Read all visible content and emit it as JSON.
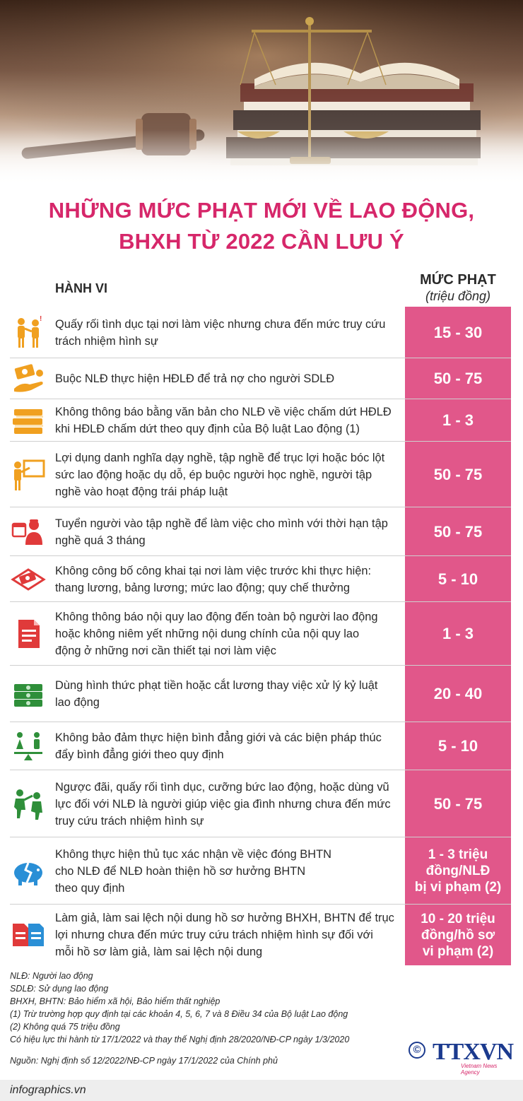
{
  "title": {
    "line1": "NHỮNG MỨC PHẠT MỚI VỀ LAO ĐỘNG,",
    "line2": "BHXH TỪ 2022 CẦN LƯU Ý"
  },
  "columns": {
    "behavior": "HÀNH VI",
    "penalty": "MỨC PHẠT",
    "penalty_unit": "(triệu đồng)"
  },
  "rows": [
    {
      "icon": "harassment-icon",
      "lines": [
        "Quấy rối tình dục tại nơi làm việc nhưng chưa đến mức truy cứu",
        "trách nhiệm hình sự"
      ],
      "value": [
        "15 - 30"
      ]
    },
    {
      "icon": "money-hand-icon",
      "lines": [
        "Buộc NLĐ thực hiện HĐLĐ để trả nợ cho người SDLĐ"
      ],
      "value": [
        "50 - 75"
      ]
    },
    {
      "icon": "books-icon",
      "lines": [
        "Không thông báo bằng văn bản cho NLĐ về việc chấm dứt HĐLĐ",
        "khi HĐLĐ chấm dứt theo quy định của Bộ luật Lao động (1)"
      ],
      "value": [
        "1 - 3"
      ]
    },
    {
      "icon": "teacher-board-icon",
      "lines": [
        "Lợi dụng danh nghĩa dạy nghề, tập nghề để trục lợi hoặc bóc lột",
        "sức lao động hoặc dụ dỗ, ép buộc người học nghề, người tập",
        "nghề vào hoạt động trái pháp luật"
      ],
      "value": [
        "50 - 75"
      ]
    },
    {
      "icon": "calendar-worker-icon",
      "lines": [
        "Tuyển người vào tập nghề để làm việc cho mình với thời hạn tập",
        "nghề quá 3 tháng"
      ],
      "value": [
        "50 - 75"
      ]
    },
    {
      "icon": "money-envelope-icon",
      "lines": [
        "Không công bố công khai tại nơi làm việc trước khi thực hiện:",
        "thang lương, bảng lương; mức lao động; quy chế thưởng"
      ],
      "value": [
        "5 - 10"
      ]
    },
    {
      "icon": "document-icon",
      "lines": [
        "Không thông báo nội quy lao động đến toàn bộ người lao động",
        "hoặc không niêm yết những nội dung chính của nội quy lao",
        "động ở những nơi cần thiết tại nơi làm việc"
      ],
      "value": [
        "1 - 3"
      ]
    },
    {
      "icon": "cash-stack-icon",
      "lines": [
        "Dùng hình thức phạt tiền hoặc cắt lương thay việc xử lý kỷ luật",
        "lao động"
      ],
      "value": [
        "20 - 40"
      ]
    },
    {
      "icon": "gender-balance-icon",
      "lines": [
        "Không bảo đảm thực hiện bình đẳng giới và các biện pháp thúc",
        "đẩy bình đẳng giới theo quy định"
      ],
      "value": [
        "5 - 10"
      ]
    },
    {
      "icon": "abuse-icon",
      "lines": [
        "Ngược đãi, quấy rối tình dục, cưỡng bức lao động, hoặc dùng vũ",
        "lực đối với NLĐ là người giúp việc gia đình nhưng chưa đến mức",
        "truy cứu trách nhiệm hình sự"
      ],
      "value": [
        "50 - 75"
      ]
    },
    {
      "icon": "broken-piggy-bank-icon",
      "lines": [
        "Không thực hiện thủ tục xác nhận về việc đóng BHTN",
        "cho NLĐ để NLĐ hoàn thiện hồ sơ hưởng BHTN",
        "theo quy định"
      ],
      "value": [
        "1 - 3 triệu",
        "đồng/NLĐ",
        "bị vi phạm (2)"
      ]
    },
    {
      "icon": "documents-icon",
      "lines": [
        "Làm giả, làm sai lệch nội dung hồ sơ hưởng BHXH, BHTN để trục",
        "lợi nhưng chưa đến mức truy cứu trách nhiệm hình sự đối với",
        "mỗi hồ sơ làm giả, làm sai lệch nội dung"
      ],
      "value": [
        "10 - 20 triệu",
        "đồng/hồ sơ",
        "vi phạm (2)"
      ]
    }
  ],
  "notes": [
    "NLĐ: Người lao động",
    "SDLĐ: Sử dụng lao động",
    "BHXH, BHTN: Bảo hiểm xã hội, Bảo hiểm thất nghiệp",
    "(1) Trừ trường hợp quy định tại các khoản 4, 5, 6, 7 và 8 Điều 34 của Bộ luật Lao động",
    "(2) Không quá 75 triệu đồng",
    "Có hiệu lực thi hành từ 17/1/2022 và thay thế Nghị định 28/2020/NĐ-CP ngày 1/3/2020"
  ],
  "source": "Nguồn: Nghị định số 12/2022/NĐ-CP ngày 17/1/2022 của Chính phủ",
  "logo": {
    "copyright": "©",
    "brand": "TTXVN",
    "subtitle": "Vietnam News Agency"
  },
  "site": "infographics.vn",
  "colors": {
    "accent": "#d6276a",
    "pink_column": "#e1578a",
    "icon_orange": "#f0a020",
    "icon_red": "#e03a3a",
    "icon_green": "#2f8f3a",
    "icon_blue": "#2a8fd6",
    "logo_blue": "#1b3a8e"
  }
}
